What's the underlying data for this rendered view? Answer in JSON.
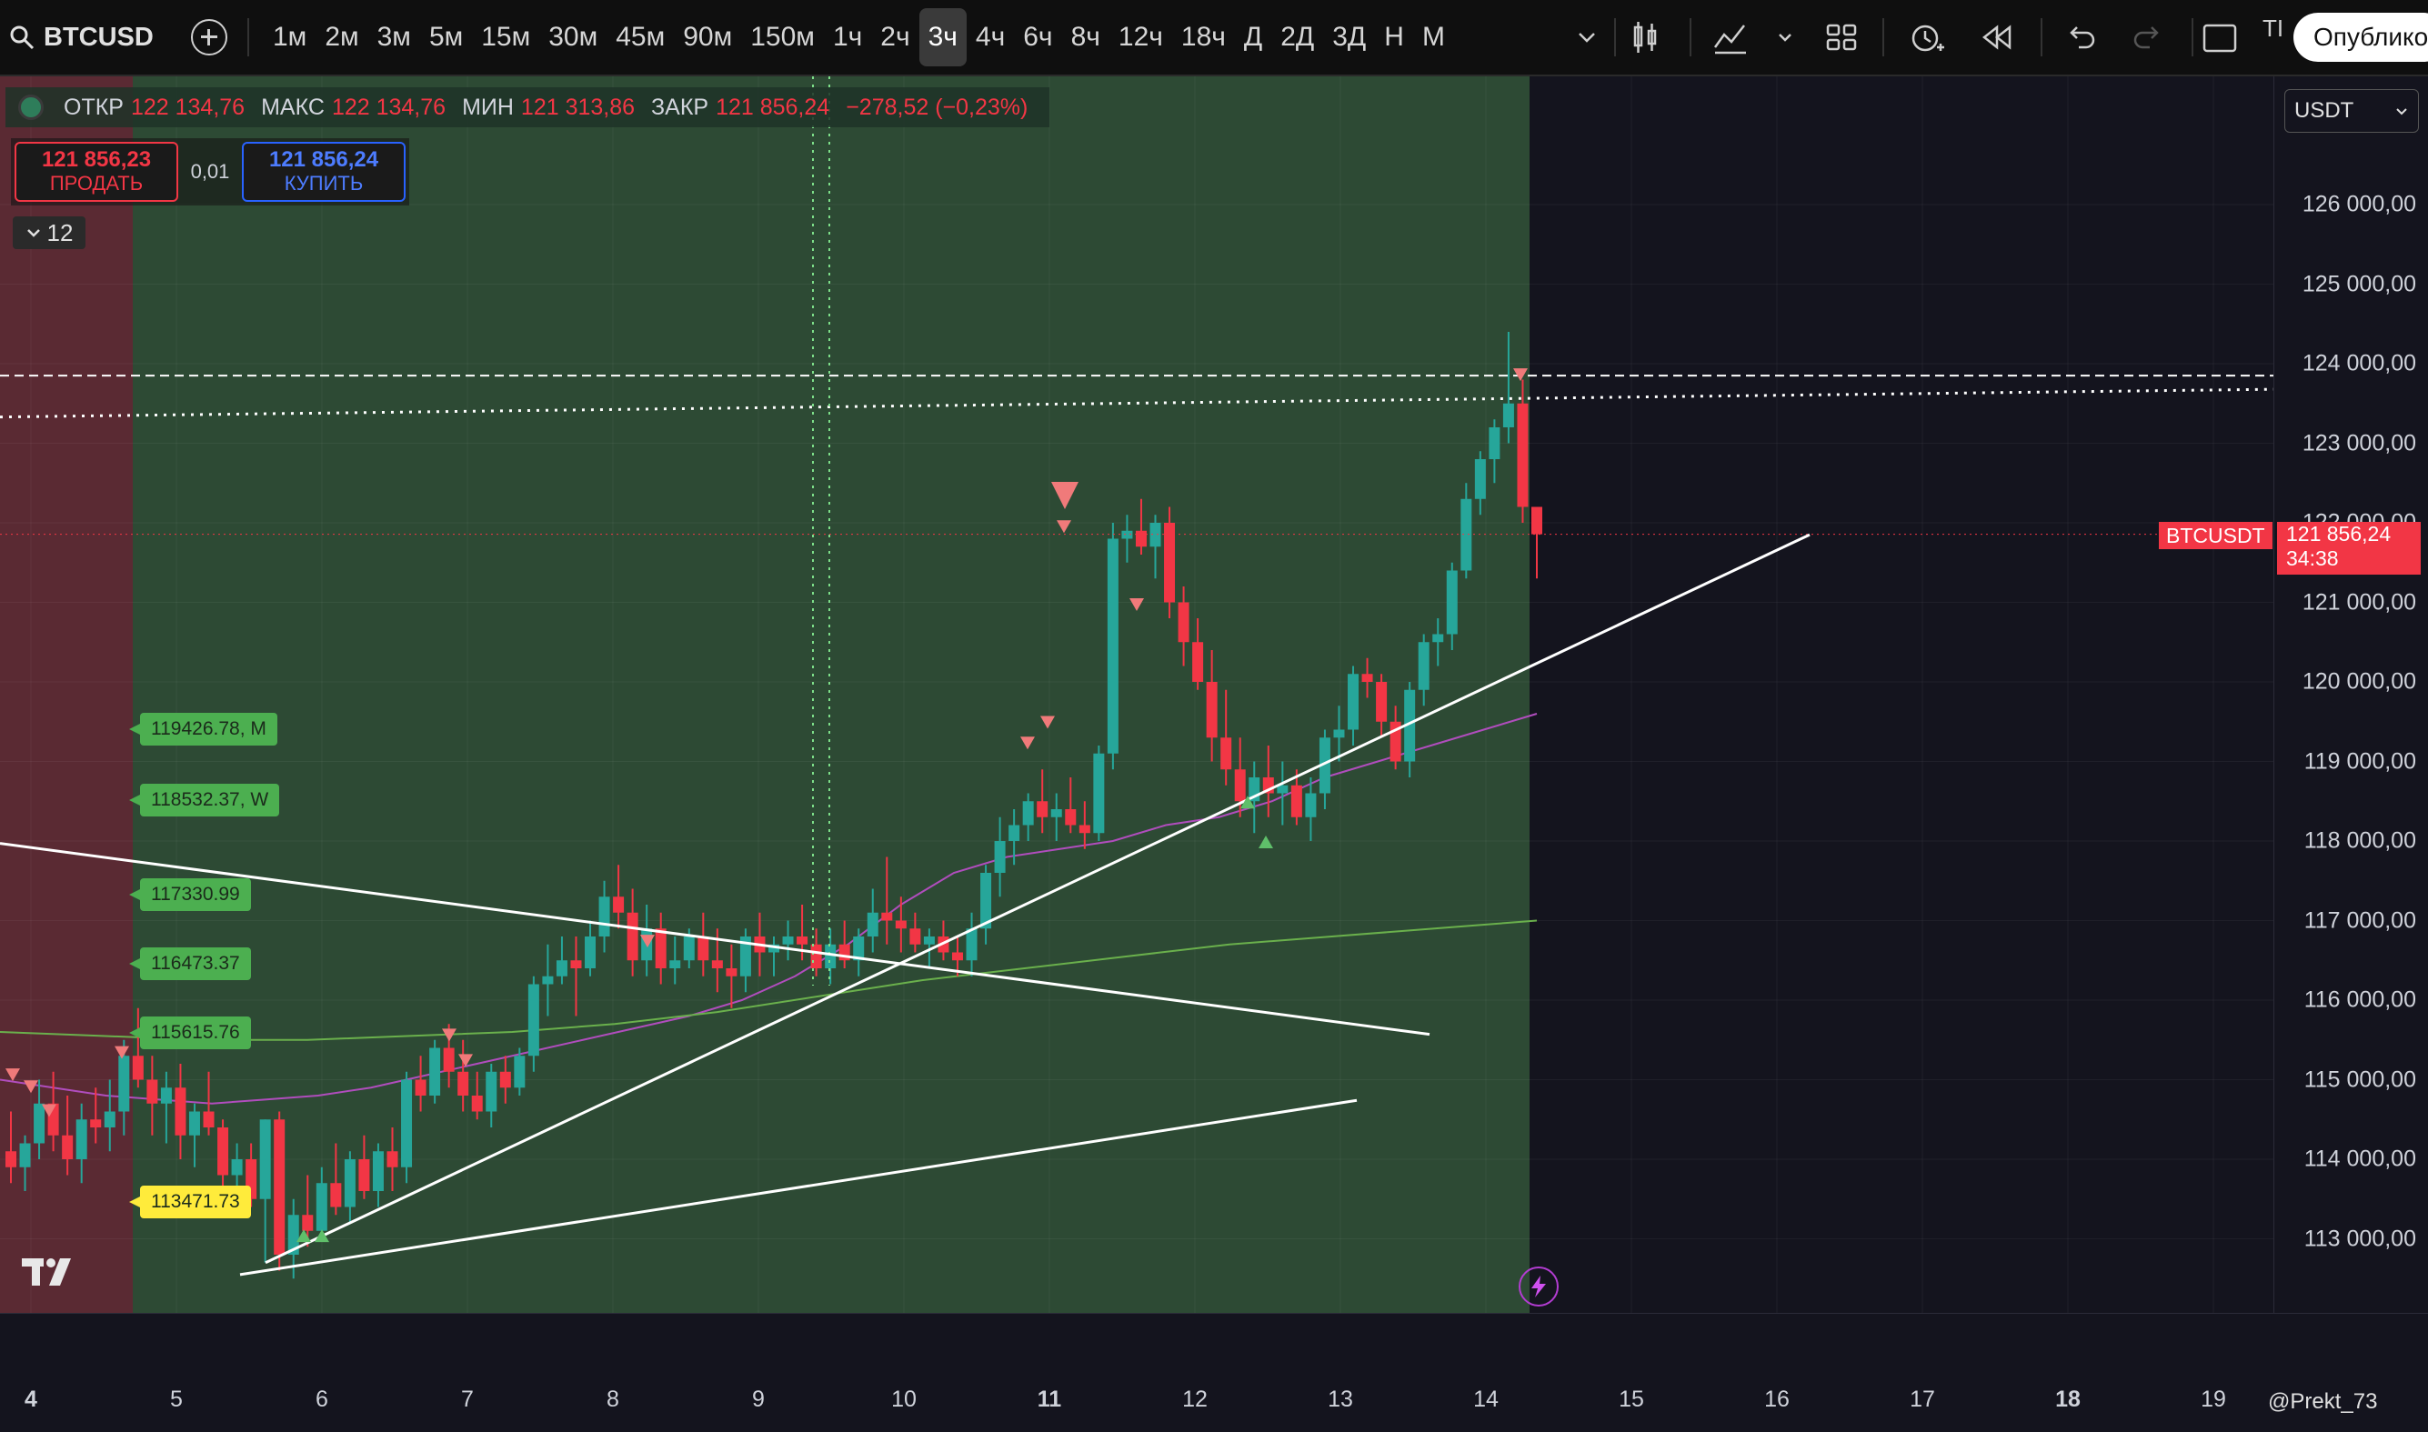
{
  "toolbar": {
    "symbol": "BTCUSD",
    "intervals": [
      "1м",
      "2м",
      "3м",
      "5м",
      "15м",
      "30м",
      "45м",
      "90м",
      "150м",
      "1ч",
      "2ч",
      "3ч",
      "4ч",
      "6ч",
      "8ч",
      "12ч",
      "18ч",
      "Д",
      "2Д",
      "3Д",
      "Н",
      "М"
    ],
    "active_interval": "3ч",
    "publish_label": "Опублико",
    "tr_label": "ТІ"
  },
  "legend": {
    "open_label": "ОТКР",
    "open": "122 134,76",
    "high_label": "МАКС",
    "high": "122 134,76",
    "low_label": "МИН",
    "low": "121 313,86",
    "close_label": "ЗАКР",
    "close": "121 856,24",
    "change": "−278,52 (−0,23%)"
  },
  "trade": {
    "sell_price": "121 856,23",
    "sell_label": "ПРОДАТЬ",
    "lot": "0,01",
    "buy_price": "121 856,24",
    "buy_label": "КУПИТЬ",
    "collapse_count": "12"
  },
  "level_tags": [
    {
      "text": "119426.78, M",
      "color": "#4caf50"
    },
    {
      "text": "118532.37, W",
      "color": "#4caf50"
    },
    {
      "text": "117330.99",
      "color": "#4caf50"
    },
    {
      "text": "116473.37",
      "color": "#4caf50"
    },
    {
      "text": "115615.76",
      "color": "#4caf50"
    },
    {
      "text": "113471.73",
      "color": "#ffeb3b"
    }
  ],
  "price_scale": {
    "currency": "USDT",
    "ticks": [
      "126 000,00",
      "125 000,00",
      "124 000,00",
      "123 000,00",
      "122 000,00",
      "121 000,00",
      "120 000,00",
      "119 000,00",
      "118 000,00",
      "117 000,00",
      "116 000,00",
      "115 000,00",
      "114 000,00",
      "113 000,00"
    ],
    "last_price_symbol": "BTCUSDT",
    "last_price": "121 856,24",
    "countdown": "34:38"
  },
  "time_scale": {
    "dates": [
      {
        "label": "4",
        "bold": true
      },
      {
        "label": "5",
        "bold": false
      },
      {
        "label": "6",
        "bold": false
      },
      {
        "label": "7",
        "bold": false
      },
      {
        "label": "8",
        "bold": false
      },
      {
        "label": "9",
        "bold": false
      },
      {
        "label": "10",
        "bold": false
      },
      {
        "label": "11",
        "bold": true
      },
      {
        "label": "12",
        "bold": false
      },
      {
        "label": "13",
        "bold": false
      },
      {
        "label": "14",
        "bold": false
      },
      {
        "label": "15",
        "bold": false
      },
      {
        "label": "16",
        "bold": false
      },
      {
        "label": "17",
        "bold": false
      },
      {
        "label": "18",
        "bold": true
      },
      {
        "label": "19",
        "bold": false
      }
    ]
  },
  "watermark": "@Prekt_73",
  "colors": {
    "up": "#26a69a",
    "down": "#f23645",
    "green_zone": "#2d4a34",
    "red_zone": "#5a2a33",
    "sma_fast": "#b04dbd",
    "sma_slow": "#6ab04c"
  },
  "candles": [
    [
      114100,
      114600,
      113700,
      113900
    ],
    [
      113900,
      114300,
      113600,
      114200
    ],
    [
      114200,
      115000,
      114000,
      114700
    ],
    [
      114700,
      115100,
      114100,
      114300
    ],
    [
      114300,
      114800,
      113800,
      114000
    ],
    [
      114000,
      114700,
      113700,
      114500
    ],
    [
      114500,
      114900,
      114200,
      114400
    ],
    [
      114400,
      115000,
      114100,
      114600
    ],
    [
      114600,
      115500,
      114300,
      115300
    ],
    [
      115300,
      115900,
      114900,
      115000
    ],
    [
      115000,
      115300,
      114300,
      114700
    ],
    [
      114700,
      115100,
      114200,
      114900
    ],
    [
      114900,
      115200,
      114000,
      114300
    ],
    [
      114300,
      114700,
      113900,
      114600
    ],
    [
      114600,
      115100,
      114300,
      114400
    ],
    [
      114400,
      114500,
      113600,
      113800
    ],
    [
      113800,
      114200,
      113500,
      114000
    ],
    [
      114000,
      114200,
      113400,
      113500
    ],
    [
      113500,
      114500,
      112700,
      114500
    ],
    [
      114500,
      114600,
      112600,
      112800
    ],
    [
      112800,
      113500,
      112500,
      113300
    ],
    [
      113300,
      113800,
      112900,
      113100
    ],
    [
      113100,
      113900,
      113000,
      113700
    ],
    [
      113700,
      114200,
      113300,
      113400
    ],
    [
      113400,
      114100,
      113200,
      114000
    ],
    [
      114000,
      114300,
      113500,
      113600
    ],
    [
      113600,
      114200,
      113400,
      114100
    ],
    [
      114100,
      114400,
      113600,
      113900
    ],
    [
      113900,
      115100,
      113700,
      115000
    ],
    [
      115000,
      115300,
      114600,
      114800
    ],
    [
      114800,
      115500,
      114700,
      115400
    ],
    [
      115400,
      115700,
      114900,
      115100
    ],
    [
      115100,
      115500,
      114600,
      114800
    ],
    [
      114800,
      115100,
      114500,
      114600
    ],
    [
      114600,
      115200,
      114400,
      115100
    ],
    [
      115100,
      115300,
      114700,
      114900
    ],
    [
      114900,
      115400,
      114800,
      115300
    ],
    [
      115300,
      116300,
      115100,
      116200
    ],
    [
      116200,
      116700,
      115800,
      116300
    ],
    [
      116300,
      116800,
      116200,
      116500
    ],
    [
      116500,
      116800,
      115800,
      116400
    ],
    [
      116400,
      117000,
      116300,
      116800
    ],
    [
      116800,
      117500,
      116600,
      117300
    ],
    [
      117300,
      117700,
      116900,
      117100
    ],
    [
      117100,
      117400,
      116300,
      116500
    ],
    [
      116500,
      117200,
      116300,
      116900
    ],
    [
      116900,
      117100,
      116200,
      116400
    ],
    [
      116400,
      116800,
      116200,
      116500
    ],
    [
      116500,
      116900,
      116400,
      116800
    ],
    [
      116800,
      117100,
      116300,
      116500
    ],
    [
      116500,
      116900,
      116100,
      116400
    ],
    [
      116400,
      116700,
      115900,
      116300
    ],
    [
      116300,
      116900,
      116100,
      116800
    ],
    [
      116800,
      117100,
      116300,
      116600
    ],
    [
      116600,
      116800,
      116300,
      116700
    ],
    [
      116700,
      117000,
      116500,
      116800
    ],
    [
      116800,
      117200,
      116500,
      116700
    ],
    [
      116700,
      116900,
      116300,
      116400
    ],
    [
      116400,
      116900,
      116200,
      116700
    ],
    [
      116700,
      117000,
      116400,
      116500
    ],
    [
      116500,
      116900,
      116300,
      116800
    ],
    [
      116800,
      117400,
      116600,
      117100
    ],
    [
      117100,
      117800,
      116700,
      117000
    ],
    [
      117000,
      117300,
      116600,
      116900
    ],
    [
      116900,
      117100,
      116600,
      116700
    ],
    [
      116700,
      116900,
      116400,
      116800
    ],
    [
      116800,
      117000,
      116500,
      116600
    ],
    [
      116600,
      116800,
      116300,
      116500
    ],
    [
      116500,
      117100,
      116300,
      116900
    ],
    [
      116900,
      117700,
      116700,
      117600
    ],
    [
      117600,
      118300,
      117300,
      118000
    ],
    [
      118000,
      118400,
      117700,
      118200
    ],
    [
      118200,
      118600,
      118000,
      118500
    ],
    [
      118500,
      118900,
      118100,
      118300
    ],
    [
      118300,
      118600,
      118000,
      118400
    ],
    [
      118400,
      118800,
      118100,
      118200
    ],
    [
      118200,
      118500,
      117900,
      118100
    ],
    [
      118100,
      119200,
      118000,
      119100
    ],
    [
      119100,
      122000,
      118900,
      121800
    ],
    [
      121800,
      122100,
      121500,
      121900
    ],
    [
      121900,
      122300,
      121600,
      121700
    ],
    [
      121700,
      122100,
      121300,
      122000
    ],
    [
      122000,
      122200,
      120800,
      121000
    ],
    [
      121000,
      121200,
      120200,
      120500
    ],
    [
      120500,
      120800,
      119900,
      120000
    ],
    [
      120000,
      120400,
      119000,
      119300
    ],
    [
      119300,
      119900,
      118700,
      118900
    ],
    [
      118900,
      119300,
      118300,
      118500
    ],
    [
      118500,
      119000,
      118100,
      118800
    ],
    [
      118800,
      119200,
      118300,
      118600
    ],
    [
      118600,
      119000,
      118200,
      118700
    ],
    [
      118700,
      118900,
      118200,
      118300
    ],
    [
      118300,
      118800,
      118000,
      118600
    ],
    [
      118600,
      119400,
      118400,
      119300
    ],
    [
      119300,
      119700,
      119000,
      119400
    ],
    [
      119400,
      120200,
      119200,
      120100
    ],
    [
      120100,
      120300,
      119800,
      120000
    ],
    [
      120000,
      120100,
      119300,
      119500
    ],
    [
      119500,
      119700,
      118900,
      119000
    ],
    [
      119000,
      120000,
      118800,
      119900
    ],
    [
      119900,
      120600,
      119700,
      120500
    ],
    [
      120500,
      120800,
      120200,
      120600
    ],
    [
      120600,
      121500,
      120400,
      121400
    ],
    [
      121400,
      122500,
      121300,
      122300
    ],
    [
      122300,
      122900,
      122100,
      122800
    ],
    [
      122800,
      123300,
      122500,
      123200
    ],
    [
      123200,
      124400,
      123000,
      123500
    ],
    [
      123500,
      123800,
      122000,
      122200
    ],
    [
      122200,
      122200,
      121300,
      121856
    ]
  ],
  "sma_fast": [
    [
      115000,
      115000
    ],
    [
      115200,
      114900
    ],
    [
      115400,
      114800
    ],
    [
      115600,
      114750
    ],
    [
      115900,
      114700
    ],
    [
      116200,
      114750
    ],
    [
      116500,
      114800
    ],
    [
      116800,
      114900
    ],
    [
      117100,
      115050
    ],
    [
      117400,
      115200
    ],
    [
      117700,
      115350
    ],
    [
      118000,
      115500
    ],
    [
      118300,
      115650
    ],
    [
      118600,
      115800
    ],
    [
      118900,
      116000
    ],
    [
      119200,
      116300
    ],
    [
      119500,
      116700
    ],
    [
      119800,
      117200
    ],
    [
      120100,
      117600
    ],
    [
      120400,
      117800
    ],
    [
      120700,
      117900
    ],
    [
      121000,
      118000
    ],
    [
      121300,
      118200
    ],
    [
      121600,
      118300
    ],
    [
      121900,
      118500
    ],
    [
      122200,
      118800
    ],
    [
      122500,
      119000
    ],
    [
      122800,
      119200
    ],
    [
      123100,
      119400
    ],
    [
      123400,
      119600
    ]
  ],
  "sma_slow": [
    [
      115000,
      115600
    ],
    [
      116000,
      115550
    ],
    [
      117000,
      115500
    ],
    [
      118000,
      115500
    ],
    [
      119000,
      115550
    ],
    [
      120000,
      115600
    ],
    [
      121000,
      115700
    ],
    [
      122000,
      115850
    ],
    [
      123000,
      116050
    ],
    [
      124000,
      116250
    ],
    [
      125000,
      116400
    ],
    [
      126000,
      116550
    ],
    [
      127000,
      116700
    ],
    [
      128000,
      116800
    ],
    [
      129000,
      116900
    ],
    [
      130000,
      117000
    ]
  ]
}
